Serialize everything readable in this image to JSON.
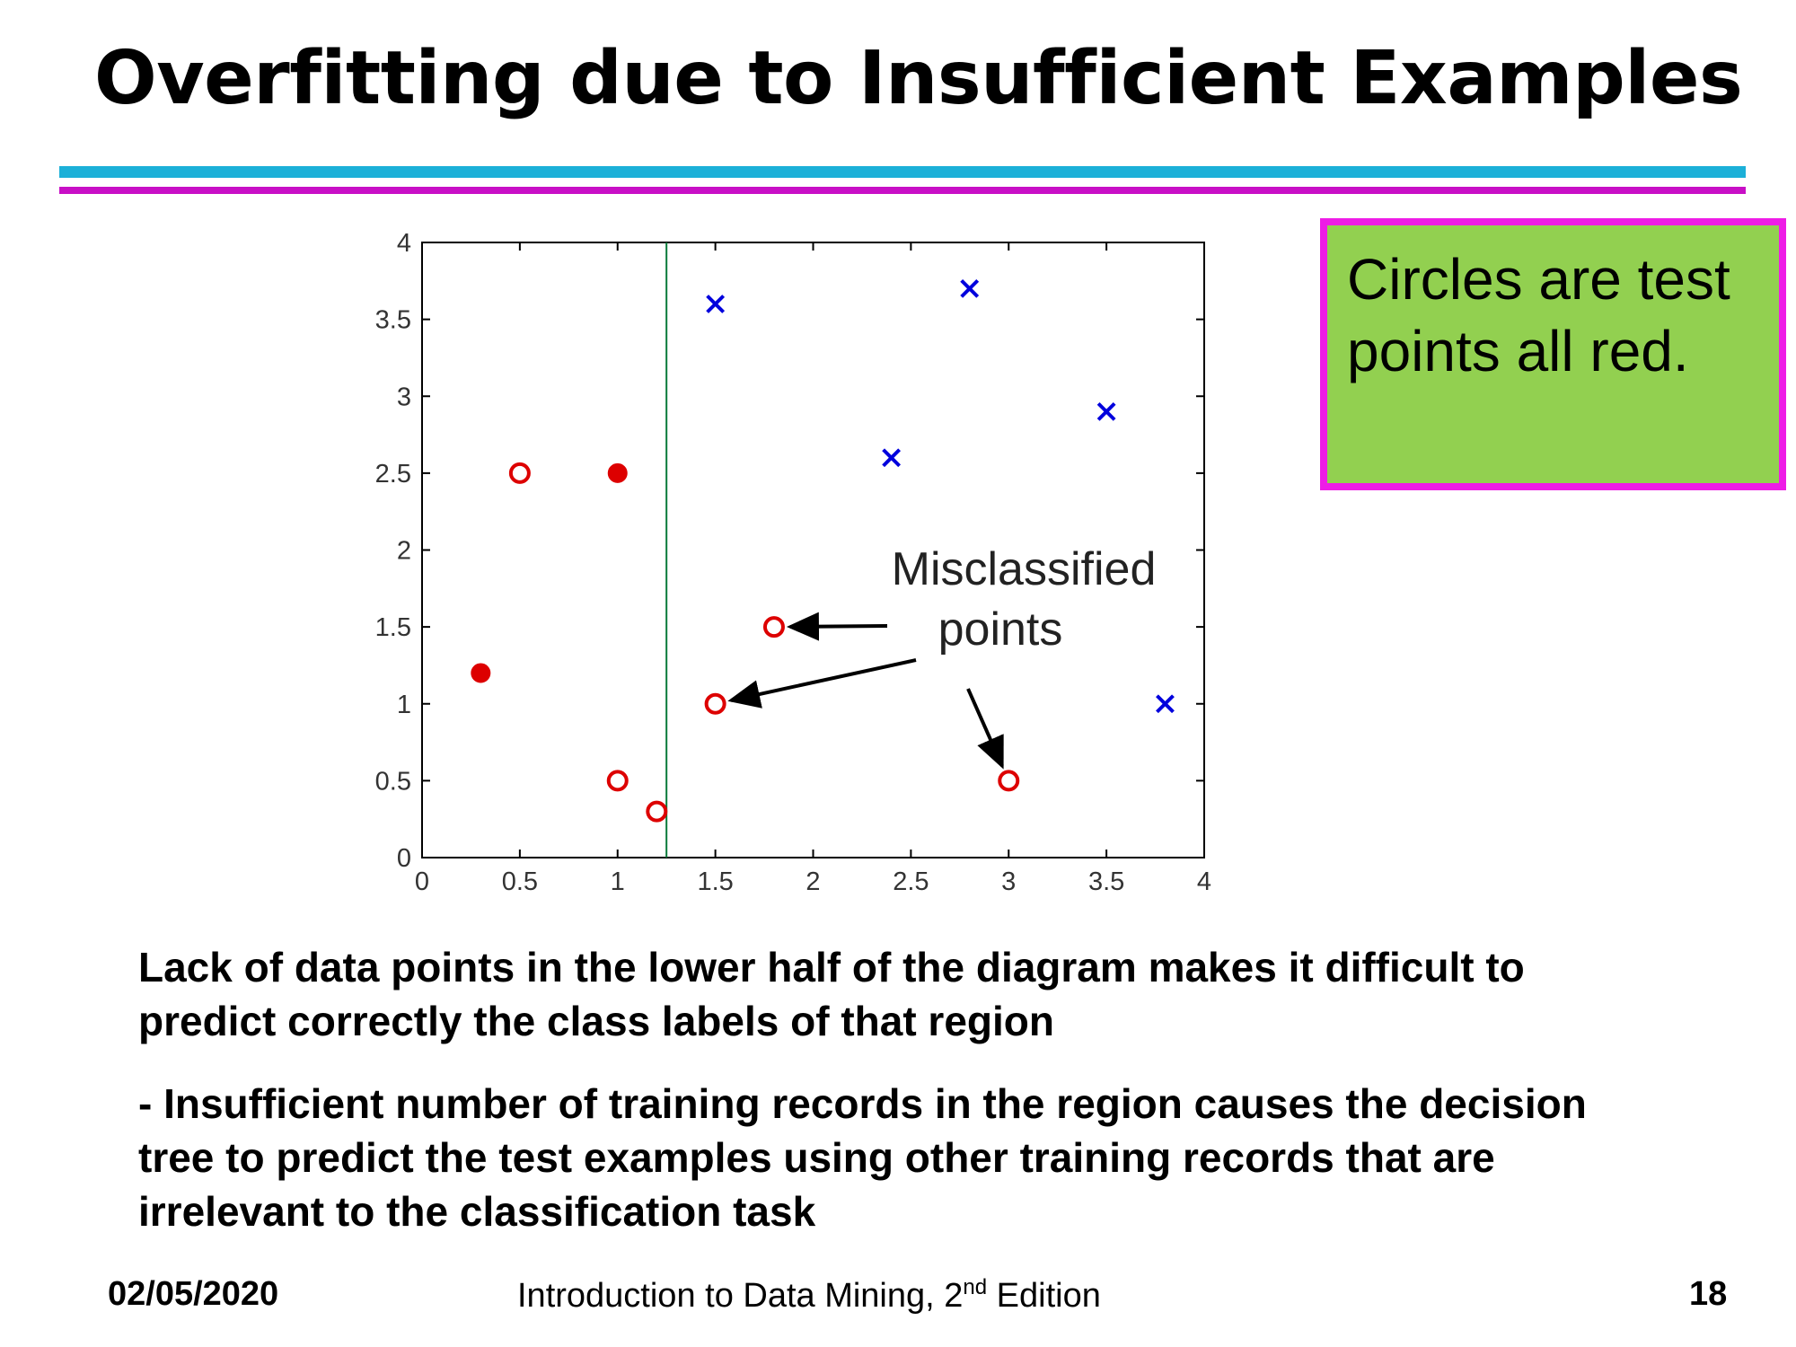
{
  "slide": {
    "title": "Overfitting due to Insufficient Examples",
    "note": "Circles are test points all red.",
    "paragraph1": "Lack of data points in the lower half of the diagram makes it difficult to predict correctly the class labels of that region",
    "paragraph2": "- Insufficient number of training records in the region causes the decision tree to predict the test examples using other training records that are irrelevant to the classification task",
    "footer": {
      "date": "02/05/2020",
      "course_prefix": "Introduction to Data Mining, 2",
      "course_sup": "nd",
      "course_suffix": " Edition",
      "page": "18"
    },
    "colors": {
      "rule_blue": "#1cb0d8",
      "rule_magenta": "#c80fc6",
      "note_fill": "#92d050",
      "note_border": "#ee1ce6"
    }
  },
  "chart_data": {
    "type": "scatter",
    "title": "",
    "xlabel": "",
    "ylabel": "",
    "xlim": [
      0,
      4
    ],
    "ylim": [
      0,
      4
    ],
    "xticks": [
      "0",
      "0.5",
      "1",
      "1.5",
      "2",
      "2.5",
      "3",
      "3.5",
      "4"
    ],
    "yticks": [
      "0",
      "0.5",
      "1",
      "1.5",
      "2",
      "2.5",
      "3",
      "3.5",
      "4"
    ],
    "grid": false,
    "decision_boundary_x": 1.25,
    "series": [
      {
        "marker": "x",
        "color": "#0000dd",
        "points": [
          [
            1.5,
            3.6
          ],
          [
            2.8,
            3.7
          ],
          [
            2.4,
            2.6
          ],
          [
            3.5,
            2.9
          ],
          [
            3.8,
            1.0
          ]
        ]
      },
      {
        "marker": "open-circle",
        "color": "#dd0000",
        "points": [
          [
            0.5,
            2.5
          ],
          [
            1.8,
            1.5
          ],
          [
            1.5,
            1.0
          ],
          [
            1.0,
            0.5
          ],
          [
            1.2,
            0.3
          ],
          [
            3.0,
            0.5
          ]
        ]
      },
      {
        "marker": "filled-circle",
        "color": "#dd0000",
        "points": [
          [
            1.0,
            2.5
          ],
          [
            0.3,
            1.2
          ]
        ]
      }
    ],
    "annotation": {
      "lines": [
        "Misclassified",
        "points"
      ],
      "arrow_targets": [
        [
          1.8,
          1.5
        ],
        [
          1.5,
          1.0
        ],
        [
          3.0,
          0.5
        ]
      ]
    }
  }
}
